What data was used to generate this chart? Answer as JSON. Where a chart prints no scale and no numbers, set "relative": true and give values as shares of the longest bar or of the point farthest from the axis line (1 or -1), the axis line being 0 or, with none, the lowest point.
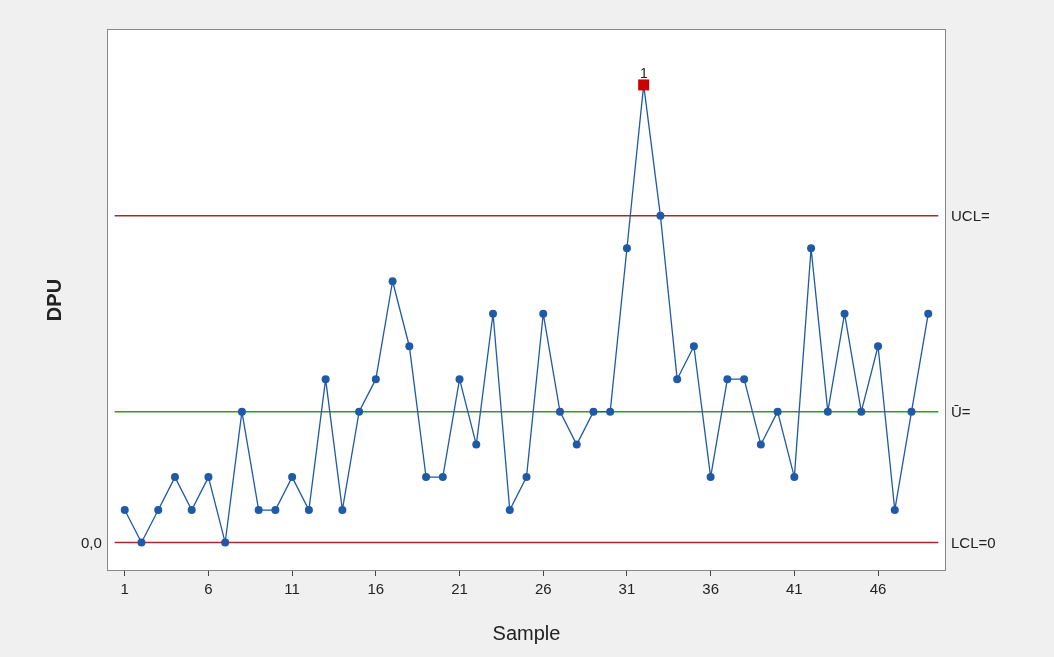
{
  "chart_data": {
    "type": "line",
    "xlabel": "Sample",
    "ylabel": "DPU",
    "relative": true,
    "x": [
      1,
      2,
      3,
      4,
      5,
      6,
      7,
      8,
      9,
      10,
      11,
      12,
      13,
      14,
      15,
      16,
      17,
      18,
      19,
      20,
      21,
      22,
      23,
      24,
      25,
      26,
      27,
      28,
      29,
      30,
      31,
      32,
      33,
      34,
      35,
      36,
      37,
      38,
      39,
      40,
      41,
      42,
      43,
      44,
      45,
      46,
      47,
      48,
      49
    ],
    "xlim": [
      0,
      50
    ],
    "xticks": [
      1,
      6,
      11,
      16,
      21,
      26,
      31,
      36,
      41,
      46
    ],
    "tick_labels": "x",
    "grid": false,
    "marker": "circle",
    "line_style": "solid",
    "series": [
      {
        "color": "#1f5aa6",
        "values": [
          0.071,
          0,
          0.071,
          0.143,
          0.071,
          0.143,
          0,
          0.286,
          0.071,
          0.071,
          0.143,
          0.071,
          0.357,
          0.071,
          0.286,
          0.357,
          0.571,
          0.429,
          0.143,
          0.143,
          0.357,
          0.214,
          0.5,
          0.071,
          0.143,
          0.5,
          0.286,
          0.214,
          0.286,
          0.286,
          0.643,
          1,
          0.714,
          0.357,
          0.429,
          0.143,
          0.357,
          0.357,
          0.214,
          0.286,
          0.143,
          0.643,
          0.286,
          0.5,
          0.286,
          0.429,
          0.071,
          0.286,
          0.5
        ]
      },
      {
        "type": "scatter",
        "x": [
          32
        ],
        "values": [
          1
        ],
        "color": "#cc0000",
        "marker": "square"
      }
    ],
    "ref_lines": [
      {
        "axis": "y",
        "value": 0.714,
        "label": "UCL=",
        "color": "#a52a2a"
      },
      {
        "axis": "y",
        "value": 0.286,
        "label": "Ū=",
        "color": "#2e9a2e"
      },
      {
        "axis": "y",
        "value": 0,
        "label": "LCL=0",
        "color": "#a52a2a"
      }
    ],
    "annotations": [
      {
        "text": "1",
        "x": 32,
        "y": 1
      },
      "0,0"
    ]
  }
}
